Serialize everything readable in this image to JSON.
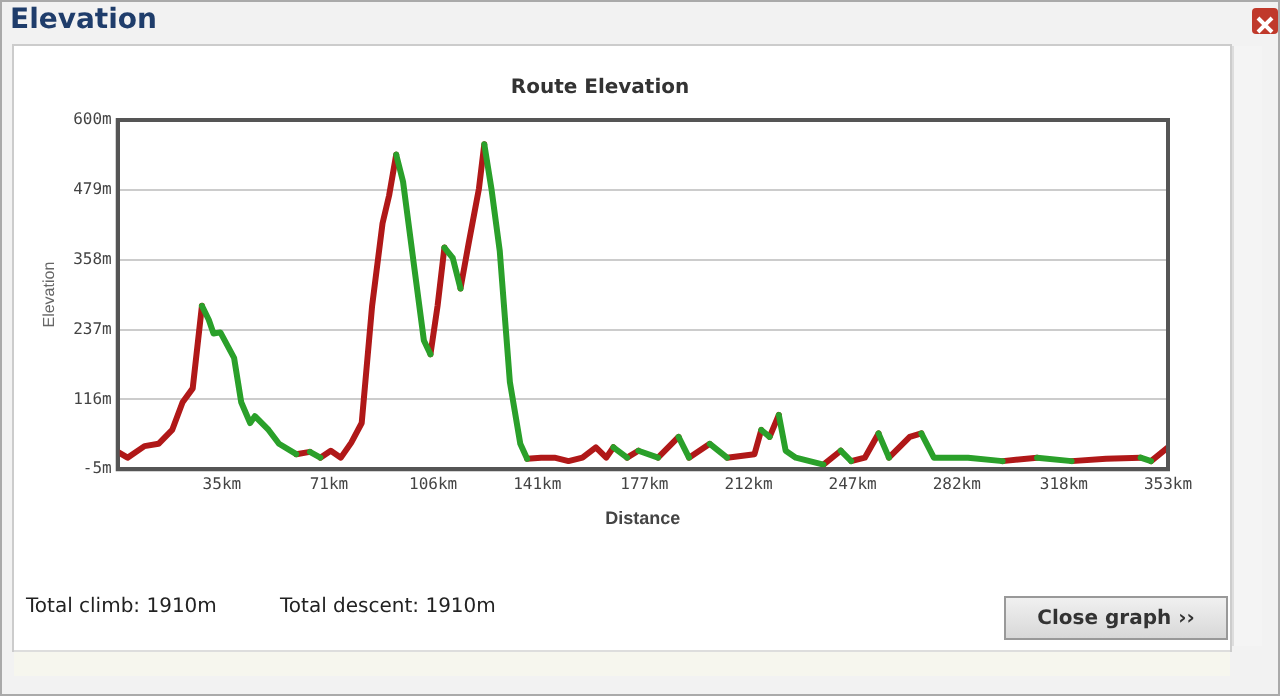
{
  "chart_data": {
    "type": "line",
    "title": "Route Elevation",
    "xlabel": "Distance",
    "ylabel": "Elevation",
    "annotations": [
      "Elevation",
      "Total climb: 1910m",
      "Total descent: 1910m",
      "Close graph ››"
    ],
    "xlim": [
      0,
      353
    ],
    "xticks": [
      {
        "value": 35,
        "label": "35km"
      },
      {
        "value": 71,
        "label": "71km"
      },
      {
        "value": 106,
        "label": "106km"
      },
      {
        "value": 141,
        "label": "141km"
      },
      {
        "value": 177,
        "label": "177km"
      },
      {
        "value": 212,
        "label": "212km"
      },
      {
        "value": 247,
        "label": "247km"
      },
      {
        "value": 282,
        "label": "282km"
      },
      {
        "value": 318,
        "label": "318km"
      },
      {
        "value": 353,
        "label": "353km"
      }
    ],
    "ylim": [
      -5,
      600
    ],
    "yticks": [
      {
        "value": -5,
        "label": "-5m"
      },
      {
        "value": 116,
        "label": "116m"
      },
      {
        "value": 237,
        "label": "237m"
      },
      {
        "value": 358,
        "label": "358m"
      },
      {
        "value": 479,
        "label": "479m"
      },
      {
        "value": 600,
        "label": "600m"
      }
    ],
    "grid": "y",
    "legend": false,
    "marker": "none",
    "line_style": "solid",
    "series": [
      {
        "color": "#2aa02a",
        "x": [
          28.3,
          30.6,
          32.2,
          34.5,
          39.1,
          41.5,
          44.5,
          46.1,
          50.7,
          54.2,
          60,
          null,
          64.6,
          68.1,
          null,
          93.6,
          95.9,
          99.4,
          102.9,
          105.1,
          null,
          109.8,
          112.6,
          115.2,
          null,
          123.2,
          125.6,
          128.4,
          131.8,
          135.3,
          137.6,
          null,
          166.6,
          171.2,
          null,
          175,
          181.6,
          null,
          188.5,
          192,
          null,
          199,
          204.8,
          null,
          216.3,
          219.1,
          null,
          222.2,
          224.5,
          227.9,
          237.2,
          null,
          243,
          246.5,
          null,
          255.7,
          259.2,
          null,
          270.1,
          274.3,
          285.8,
          297.4,
          null,
          309,
          320.6,
          null,
          343.8,
          347.3
        ],
        "values": [
          278,
          254,
          230,
          232,
          188,
          111,
          75,
          87,
          63,
          39,
          21,
          null,
          25,
          15,
          null,
          540,
          493,
          355,
          218,
          194,
          null,
          379,
          361,
          308,
          null,
          558,
          481,
          373,
          146,
          39,
          13,
          null,
          33,
          15,
          null,
          27,
          15,
          null,
          51,
          15,
          null,
          39,
          15,
          null,
          63,
          51,
          null,
          89,
          27,
          15,
          3,
          null,
          27,
          9,
          null,
          57,
          15,
          null,
          57,
          15,
          15,
          9,
          null,
          15,
          9,
          null,
          15,
          9
        ]
      },
      {
        "color": "#b01818",
        "x": [
          0,
          3.3,
          9,
          13.7,
          18.3,
          21.8,
          25.2,
          28.3,
          null,
          60,
          64.6,
          null,
          68.1,
          71.6,
          75,
          78.5,
          82,
          85.5,
          89,
          91.2,
          93.6,
          null,
          105.1,
          107.5,
          109.8,
          null,
          115.2,
          117.9,
          121.4,
          123.2,
          null,
          137.6,
          142.3,
          146.8,
          151.5,
          156.2,
          160.7,
          164.2,
          166.6,
          null,
          171.2,
          175,
          null,
          181.6,
          188.5,
          null,
          192,
          199,
          null,
          204.8,
          214,
          216.3,
          null,
          219.1,
          222.2,
          null,
          237.2,
          243,
          null,
          246.5,
          251.1,
          255.7,
          null,
          259.2,
          266.2,
          270.1,
          null,
          297.4,
          309,
          null,
          320.6,
          332.2,
          343.8,
          null,
          347.3,
          353
        ],
        "values": [
          25,
          15,
          35,
          39,
          63,
          111,
          135,
          278,
          null,
          21,
          25,
          null,
          15,
          27,
          15,
          41,
          75,
          278,
          421,
          469,
          540,
          null,
          194,
          278,
          379,
          null,
          308,
          385,
          481,
          558,
          null,
          13,
          15,
          15,
          9,
          15,
          33,
          15,
          33,
          null,
          15,
          27,
          null,
          15,
          51,
          null,
          15,
          39,
          null,
          15,
          21,
          63,
          null,
          51,
          89,
          null,
          3,
          27,
          null,
          9,
          15,
          57,
          null,
          15,
          51,
          57,
          null,
          9,
          15,
          null,
          9,
          13,
          15,
          null,
          9,
          33
        ]
      }
    ]
  }
}
